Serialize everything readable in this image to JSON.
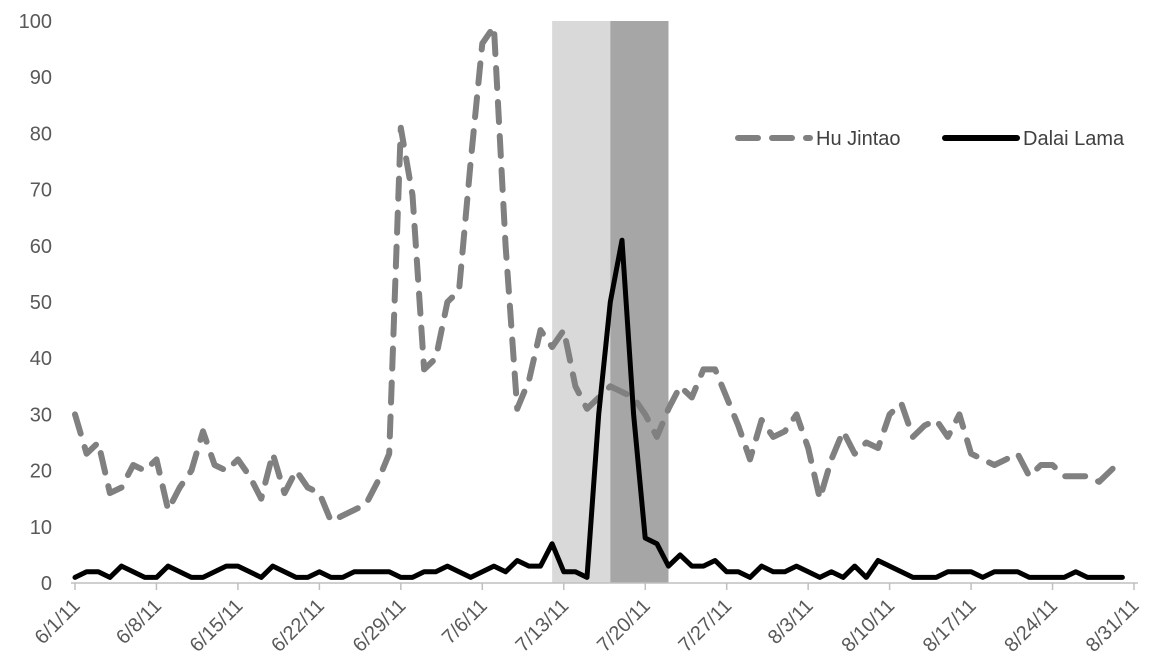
{
  "chart_data": {
    "type": "line",
    "title": "",
    "xlabel": "",
    "ylabel": "",
    "ylim": [
      0,
      100
    ],
    "yticks": [
      0,
      10,
      20,
      30,
      40,
      50,
      60,
      70,
      80,
      90,
      100
    ],
    "xtick_labels": [
      "6/1/11",
      "6/8/11",
      "6/15/11",
      "6/22/11",
      "6/29/11",
      "7/6/11",
      "7/13/11",
      "7/20/11",
      "7/27/11",
      "8/3/11",
      "8/10/11",
      "8/17/11",
      "8/24/11",
      "8/31/11"
    ],
    "x_start": "2011-06-01",
    "x_end": "2011-08-31",
    "grid": false,
    "legend": {
      "position": "right"
    },
    "shaded_regions": [
      {
        "from": "2011-07-12",
        "to": "2011-07-17",
        "color": "#d9d9d9"
      },
      {
        "from": "2011-07-17",
        "to": "2011-07-22",
        "color": "#a6a6a6"
      }
    ],
    "series": [
      {
        "name": "Hu Jintao",
        "color": "#808080",
        "style": "dashed",
        "values": [
          30,
          23,
          25,
          16,
          17,
          21,
          20,
          22,
          13,
          17,
          20,
          27,
          21,
          20,
          22,
          19,
          15,
          23,
          16,
          20,
          17,
          16,
          11,
          12,
          13,
          14,
          18,
          23,
          81,
          69,
          38,
          40,
          50,
          52,
          75,
          96,
          99,
          60,
          31,
          36,
          45,
          42,
          45,
          35,
          31,
          33,
          35,
          34,
          33,
          30,
          26,
          31,
          35,
          33,
          38,
          38,
          33,
          28,
          22,
          29,
          26,
          27,
          30,
          24,
          15,
          22,
          27,
          23,
          25,
          24,
          30,
          32,
          26,
          28,
          29,
          26,
          30,
          23,
          22,
          21,
          22,
          23,
          19,
          21,
          21,
          19,
          19,
          19,
          18,
          20,
          22
        ]
      },
      {
        "name": "Dalai Lama",
        "color": "#000000",
        "style": "solid",
        "values": [
          1,
          2,
          2,
          1,
          3,
          2,
          1,
          1,
          3,
          2,
          1,
          1,
          2,
          3,
          3,
          2,
          1,
          3,
          2,
          1,
          1,
          2,
          1,
          1,
          2,
          2,
          2,
          2,
          1,
          1,
          2,
          2,
          3,
          2,
          1,
          2,
          3,
          2,
          4,
          3,
          3,
          7,
          2,
          2,
          1,
          30,
          50,
          61,
          30,
          8,
          7,
          3,
          5,
          3,
          3,
          4,
          2,
          2,
          1,
          3,
          2,
          2,
          3,
          2,
          1,
          2,
          1,
          3,
          1,
          4,
          3,
          2,
          1,
          1,
          1,
          2,
          2,
          2,
          1,
          2,
          2,
          2,
          1,
          1,
          1,
          1,
          2,
          1,
          1,
          1,
          1
        ]
      }
    ]
  }
}
